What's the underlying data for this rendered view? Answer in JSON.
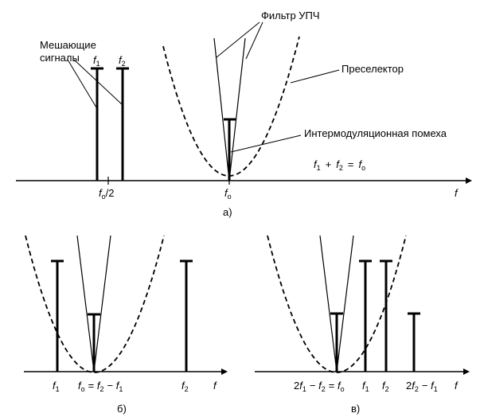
{
  "top": {
    "caption": "а)",
    "label_interfering": [
      "Мешающие",
      "сигналы"
    ],
    "label_if_filter": "Фильтр УПЧ",
    "label_preselector": "Преселектор",
    "label_intermod": "Интермодуляционная помеха",
    "relation": {
      "f1": "f",
      "s1": "1",
      "plus": "+",
      "f2": "f",
      "s2": "2",
      "eq": "=",
      "f0": "f",
      "s0": "o"
    },
    "bar_label_f1": {
      "f": "f",
      "s": "1"
    },
    "bar_label_f2": {
      "f": "f",
      "s": "2"
    },
    "tick_half": {
      "f": "f",
      "s": "o",
      "rest": "/2"
    },
    "tick_f0": {
      "f": "f",
      "s": "o"
    },
    "axis_f": "f"
  },
  "left": {
    "caption": "б)",
    "tick_f1": {
      "f": "f",
      "s": "1"
    },
    "tick_f0_eq": {
      "f": "f",
      "s": "o",
      "eq": " = ",
      "f2": "f",
      "s2": "2",
      "minus": " − ",
      "f1": "f",
      "s1": "1"
    },
    "tick_f2": {
      "f": "f",
      "s": "2"
    },
    "axis_f": "f"
  },
  "right": {
    "caption": "в)",
    "tick_a": {
      "c": "2",
      "f1": "f",
      "s1": "1",
      "minus": " − ",
      "f2": "f",
      "s2": "2",
      "eq": " = ",
      "f0": "f",
      "s0": "o"
    },
    "tick_f1": {
      "f": "f",
      "s": "1"
    },
    "tick_f2": {
      "f": "f",
      "s": "2"
    },
    "tick_b": {
      "c": "2",
      "f2": "f",
      "s2": "2",
      "minus": " − ",
      "f1": "f",
      "s1": "1"
    },
    "axis_f": "f"
  }
}
